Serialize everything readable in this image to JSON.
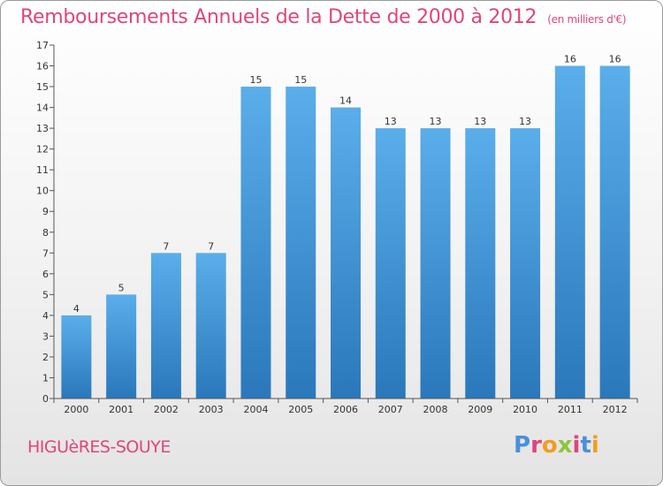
{
  "header": {
    "title": "Remboursements Annuels de la Dette de 2000 à 2012",
    "subtitle": "(en milliers d'€)"
  },
  "footer": {
    "commune": "HIGUèRES-SOUYE",
    "logo_letters": [
      "P",
      "r",
      "o",
      "x",
      "i",
      "t",
      "i"
    ],
    "logo_colors": [
      "#4a90d9",
      "#e0457b",
      "#f39c1f",
      "#8cc63f",
      "#e0457b",
      "#4a90d9",
      "#f39c1f"
    ]
  },
  "colors": {
    "bar_light": "#5aaeea",
    "bar_dark": "#2a78bb",
    "axis": "#555555",
    "grid_tick": "#555555"
  },
  "chart_data": {
    "type": "bar",
    "categories": [
      "2000",
      "2001",
      "2002",
      "2003",
      "2004",
      "2005",
      "2006",
      "2007",
      "2008",
      "2009",
      "2010",
      "2011",
      "2012"
    ],
    "values": [
      4,
      5,
      7,
      7,
      15,
      15,
      14,
      13,
      13,
      13,
      13,
      16,
      16
    ],
    "data_labels": [
      "4",
      "5",
      "7",
      "7",
      "15",
      "15",
      "14",
      "13",
      "13",
      "13",
      "13",
      "16",
      "16"
    ],
    "y_ticks": [
      "0",
      "1",
      "2",
      "3",
      "4",
      "5",
      "6",
      "7",
      "8",
      "9",
      "10",
      "11",
      "12",
      "13",
      "14",
      "15",
      "16",
      "17"
    ],
    "ylim": [
      0,
      17
    ],
    "grid": false,
    "title": "Remboursements Annuels de la Dette de 2000 à 2012",
    "subtitle": "(en milliers d'€)"
  }
}
